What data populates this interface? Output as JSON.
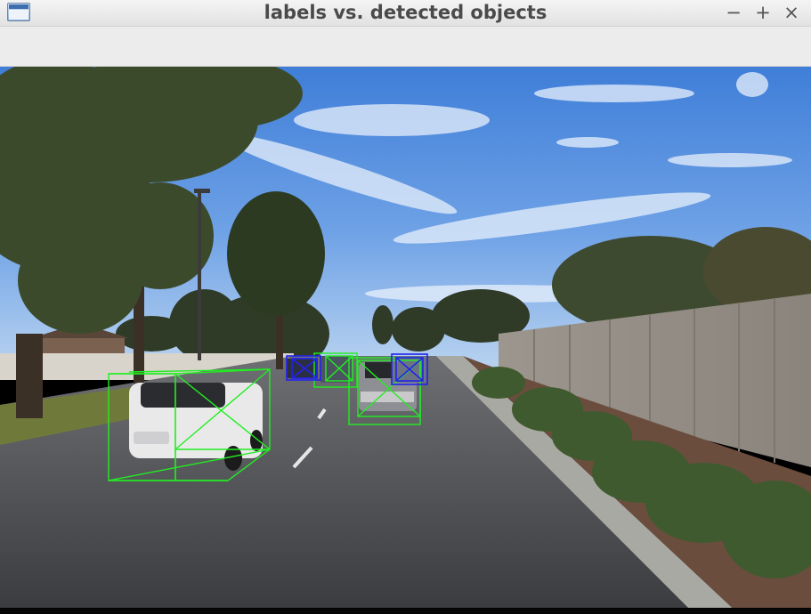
{
  "window": {
    "title": "labels vs. detected objects",
    "controls": {
      "minimize": "−",
      "maximize": "+",
      "close": "×"
    },
    "icon": "window-icon"
  },
  "legend_colors": {
    "label_box": "#22ee22",
    "detection_box": "#2222ee"
  }
}
